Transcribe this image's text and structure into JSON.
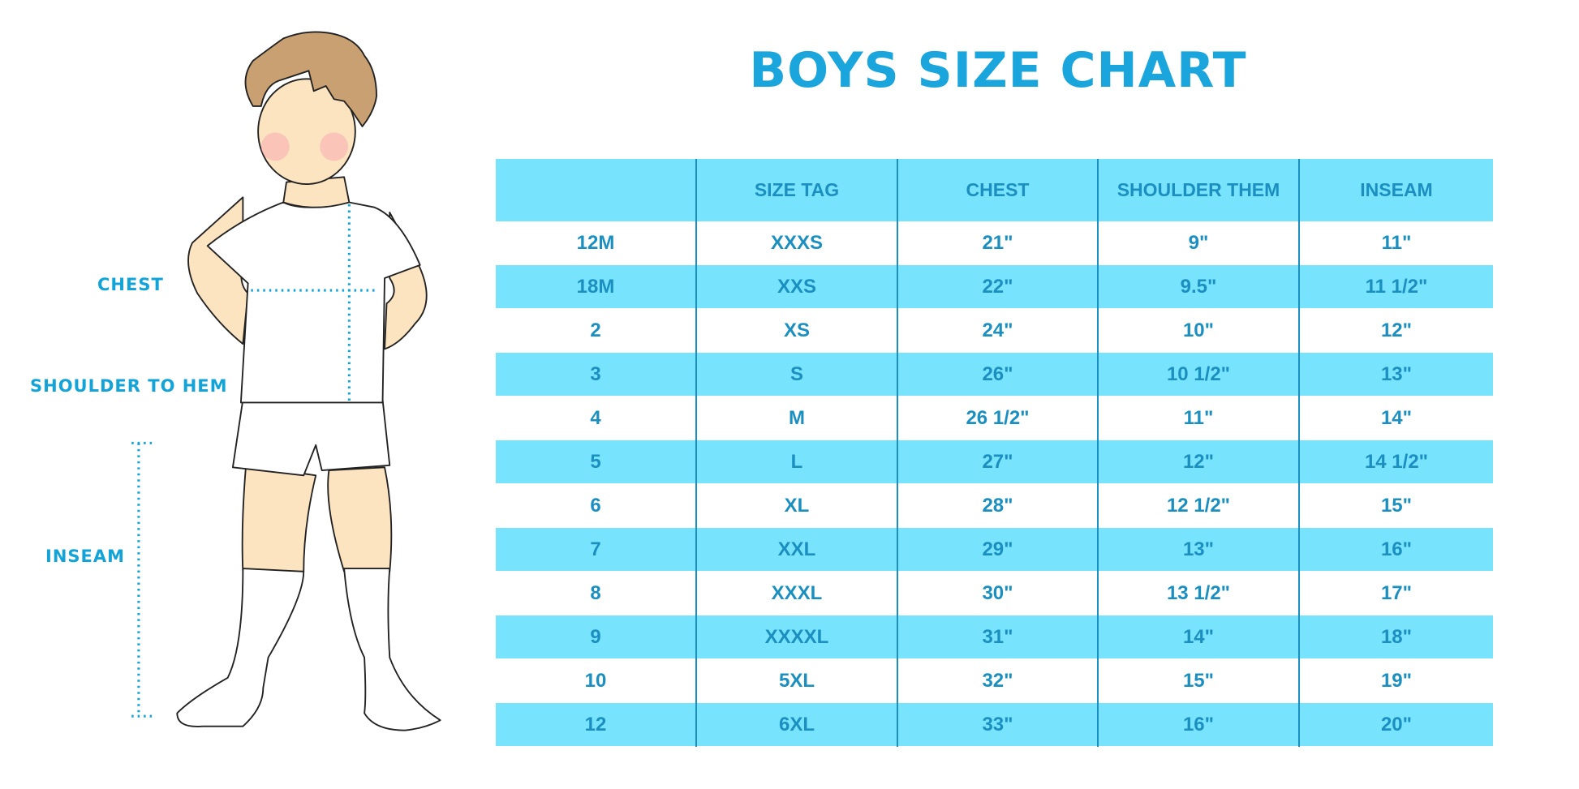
{
  "title": "BOYS SIZE CHART",
  "figure_labels": {
    "chest": "CHEST",
    "shoulder_to_hem": "SHOULDER TO HEM",
    "inseam": "INSEAM"
  },
  "colors": {
    "title": "#1aa6dc",
    "header_bg": "#78e3fd",
    "text": "#1a8fc0",
    "measure_line": "#12a3d8"
  },
  "table": {
    "headers": [
      "",
      "SIZE TAG",
      "CHEST",
      "SHOULDER THEM",
      "INSEAM"
    ],
    "rows": [
      [
        "12M",
        "XXXS",
        "21\"",
        "9\"",
        "11\""
      ],
      [
        "18M",
        "XXS",
        "22\"",
        "9.5\"",
        "11 1/2\""
      ],
      [
        "2",
        "XS",
        "24\"",
        "10\"",
        "12\""
      ],
      [
        "3",
        "S",
        "26\"",
        "10 1/2\"",
        "13\""
      ],
      [
        "4",
        "M",
        "26 1/2\"",
        "11\"",
        "14\""
      ],
      [
        "5",
        "L",
        "27\"",
        "12\"",
        "14 1/2\""
      ],
      [
        "6",
        "XL",
        "28\"",
        "12 1/2\"",
        "15\""
      ],
      [
        "7",
        "XXL",
        "29\"",
        "13\"",
        "16\""
      ],
      [
        "8",
        "XXXL",
        "30\"",
        "13 1/2\"",
        "17\""
      ],
      [
        "9",
        "XXXXL",
        "31\"",
        "14\"",
        "18\""
      ],
      [
        "10",
        "5XL",
        "32\"",
        "15\"",
        "19\""
      ],
      [
        "12",
        "6XL",
        "33\"",
        "16\"",
        "20\""
      ]
    ]
  }
}
